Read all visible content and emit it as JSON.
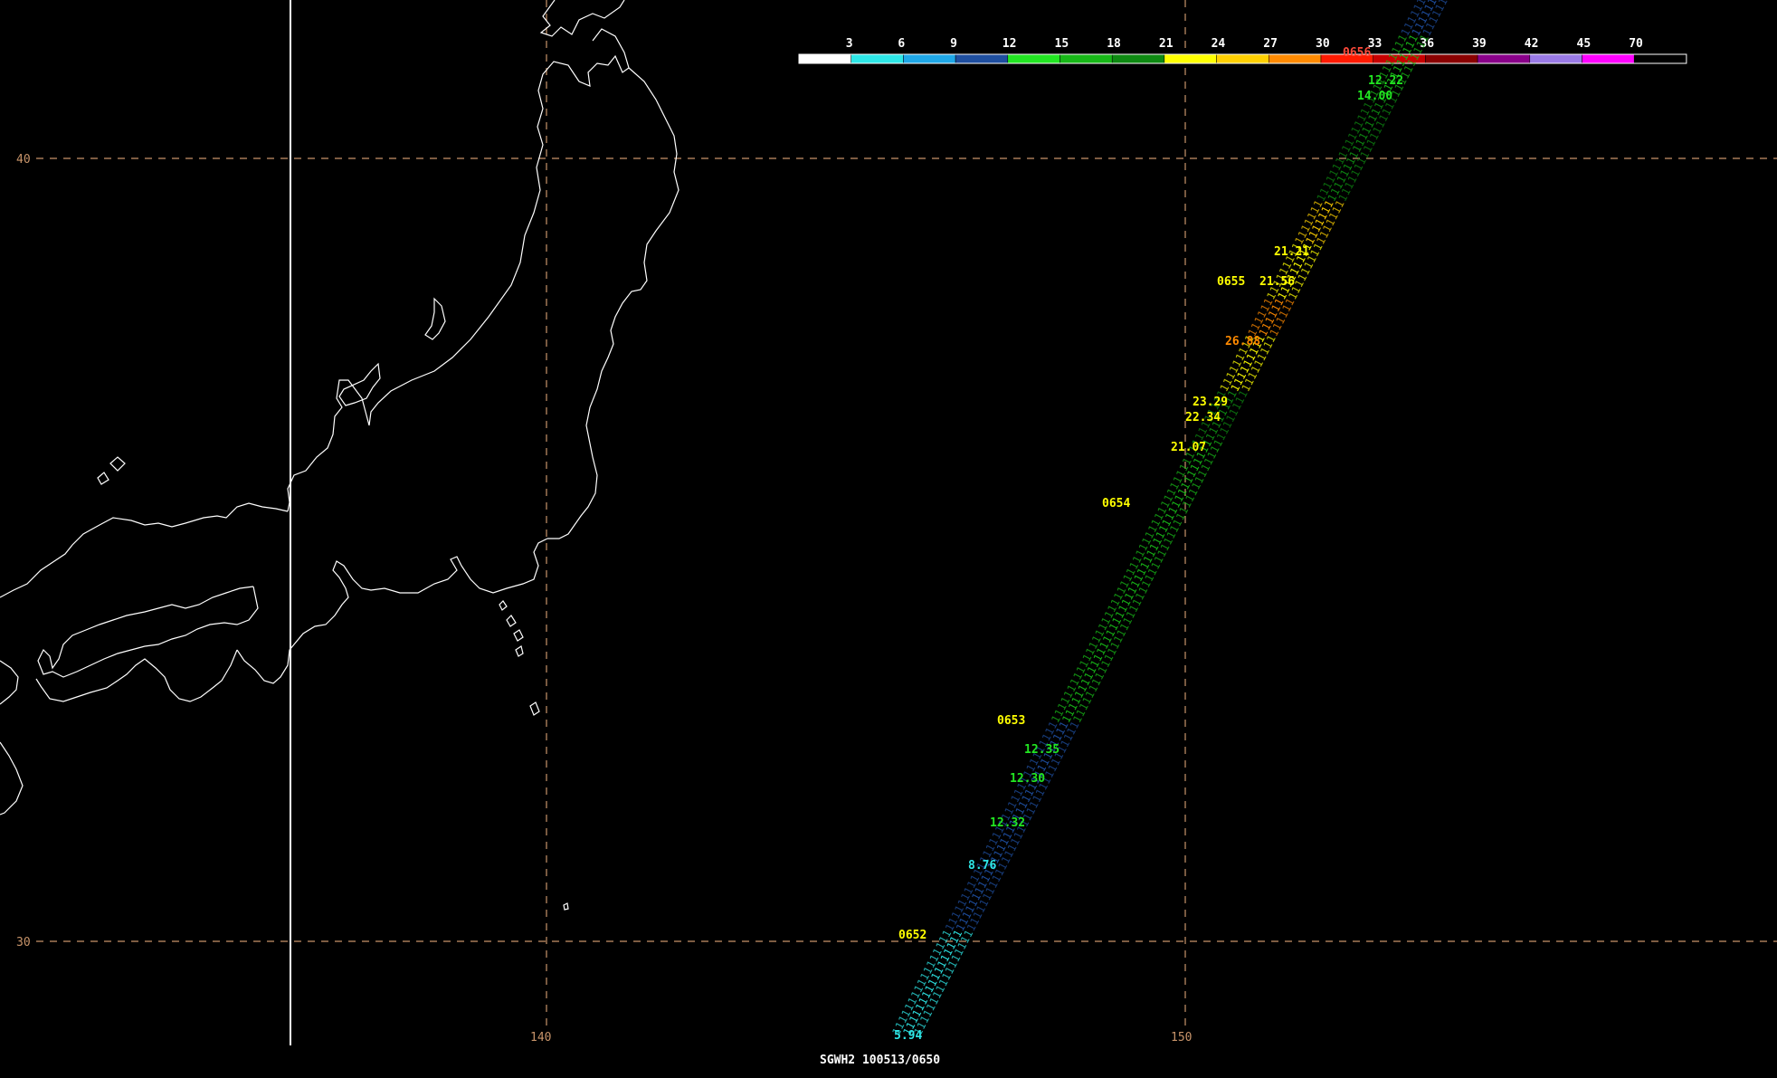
{
  "footer_label": "SGWH2 100513/0650",
  "legend": {
    "ticks": [
      "3",
      "6",
      "9",
      "12",
      "15",
      "18",
      "21",
      "24",
      "27",
      "30",
      "33",
      "36",
      "39",
      "42",
      "45",
      "70"
    ],
    "colors": [
      "#ffffff",
      "#2ee8e8",
      "#1fa8e8",
      "#1f4fa0",
      "#22e622",
      "#18b818",
      "#0e8a12",
      "#ffff00",
      "#ffd000",
      "#ff8a00",
      "#ff1a00",
      "#c80000",
      "#8a0000",
      "#8a008a",
      "#9a7ae6",
      "#ff00ff",
      "#000000"
    ]
  },
  "grid": {
    "lat_labels": [
      {
        "value": "40"
      },
      {
        "value": "30"
      }
    ],
    "lon_labels": [
      {
        "value": "140"
      },
      {
        "value": "150"
      }
    ],
    "line_color": "#c8946a"
  },
  "time_labels": [
    "0652",
    "0653",
    "0654",
    "0655",
    "0656"
  ],
  "track_values": [
    "5.94",
    "8.76",
    "12.32",
    "12.30",
    "12.35",
    "21.07",
    "22.34",
    "23.29",
    "26.88",
    "21.56",
    "21.21",
    "12.22",
    "14.00"
  ],
  "coastline_color": "#ffffff"
}
